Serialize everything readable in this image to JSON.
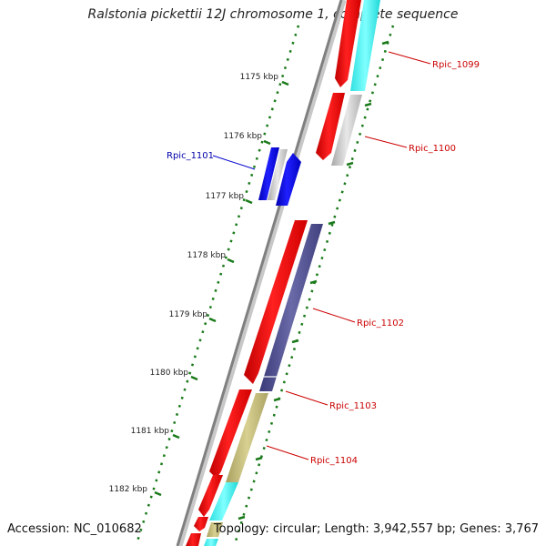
{
  "title": "Ralstonia pickettii 12J chromosome 1, complete sequence",
  "footer": {
    "accession": "Accession: NC_010682",
    "topology": "Topology: circular; Length: 3,942,557 bp; Genes: 3,767"
  },
  "colors": {
    "backbone": "#808080",
    "ticks": "#1a7a1a",
    "forward_cds": "#ff0000",
    "reverse_cds": "#0000ff",
    "label_red": "#cc0000",
    "label_blue": "#0000aa",
    "cyan": "#00ffff",
    "grey": "#c8c8c8",
    "purple": "#4a4a8a",
    "olive": "#bdb76b"
  },
  "scale_labels": [
    "1175 kbp",
    "1176 kbp",
    "1177 kbp",
    "1178 kbp",
    "1179 kbp",
    "1180 kbp",
    "1181 kbp",
    "1182 kbp"
  ],
  "genes": [
    {
      "label": "Rpic_1099",
      "color": "red"
    },
    {
      "label": "Rpic_1100",
      "color": "red"
    },
    {
      "label": "Rpic_1101",
      "color": "blue"
    },
    {
      "label": "Rpic_1102",
      "color": "red"
    },
    {
      "label": "Rpic_1103",
      "color": "red"
    },
    {
      "label": "Rpic_1104",
      "color": "red"
    }
  ]
}
